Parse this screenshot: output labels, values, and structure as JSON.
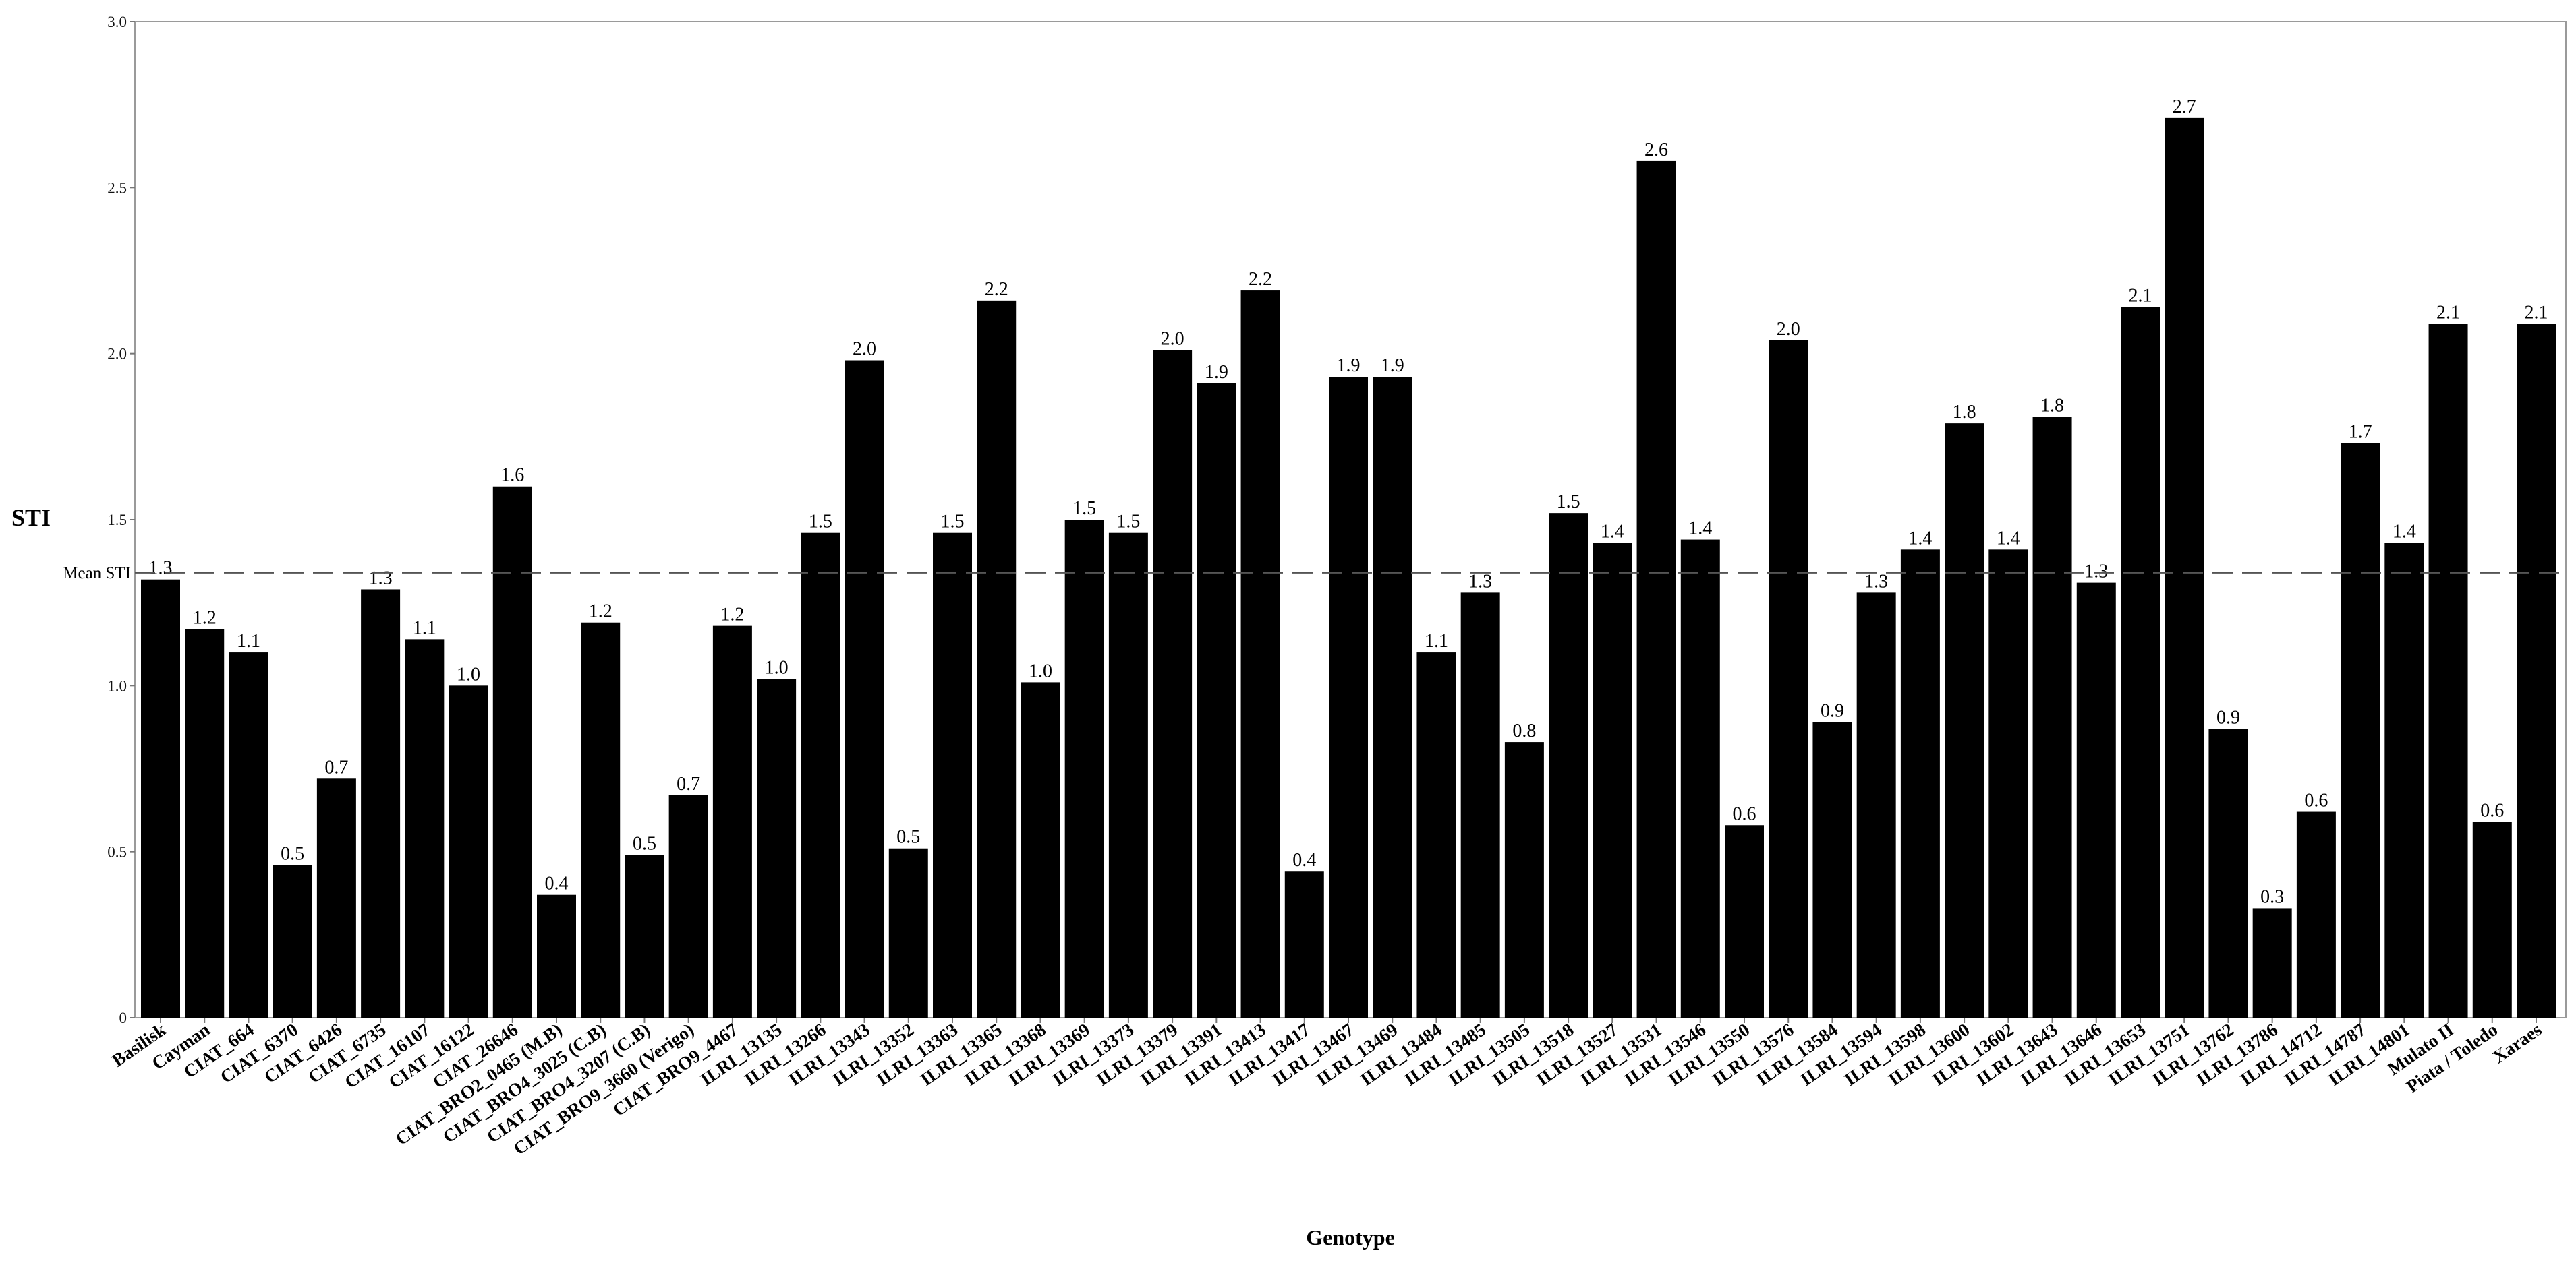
{
  "chart_data": {
    "type": "bar",
    "xlabel": "Genotype",
    "ylabel": "STI",
    "ylim": [
      0,
      3.0
    ],
    "yticks": [
      0,
      0.5,
      1.0,
      1.5,
      2.0,
      2.5,
      3.0
    ],
    "ytick_labels": [
      "0",
      "0.5",
      "1.0",
      "1.5",
      "2.0",
      "2.5",
      "3.0"
    ],
    "grid": false,
    "bar_color": "#000000",
    "reference_line": {
      "label": "Mean STI",
      "value": 1.34,
      "style": "dashed"
    },
    "categories": [
      "Basilisk",
      "Cayman",
      "CIAT_664",
      "CIAT_6370",
      "CIAT_6426",
      "CIAT_6735",
      "CIAT_16107",
      "CIAT_16122",
      "CIAT_26646",
      "CIAT_BRO2_0465 (M.B)",
      "CIAT_BRO4_3025 (C.B)",
      "CIAT_BRO4_3207 (C.B)",
      "CIAT_BRO9_3660 (Verigo)",
      "CIAT_BRO9_4467",
      "ILRI_13135",
      "ILRI_13266",
      "ILRI_13343",
      "ILRI_13352",
      "ILRI_13363",
      "ILRI_13365",
      "ILRI_13368",
      "ILRI_13369",
      "ILRI_13373",
      "ILRI_13379",
      "ILRI_13391",
      "ILRI_13413",
      "ILRI_13417",
      "ILRI_13467",
      "ILRI_13469",
      "ILRI_13484",
      "ILRI_13485",
      "ILRI_13505",
      "ILRI_13518",
      "ILRI_13527",
      "ILRI_13531",
      "ILRI_13546",
      "ILRI_13550",
      "ILRI_13576",
      "ILRI_13584",
      "ILRI_13594",
      "ILRI_13598",
      "ILRI_13600",
      "ILRI_13602",
      "ILRI_13643",
      "ILRI_13646",
      "ILRI_13653",
      "ILRI_13751",
      "ILRI_13762",
      "ILRI_13786",
      "ILRI_14712",
      "ILRI_14787",
      "ILRI_14801",
      "Mulato II",
      "Piata / Toledo",
      "Xaraes"
    ],
    "values": [
      1.32,
      1.17,
      1.1,
      0.46,
      0.72,
      1.29,
      1.14,
      1.0,
      1.6,
      0.37,
      1.19,
      0.49,
      0.67,
      1.18,
      1.02,
      1.46,
      1.98,
      0.51,
      1.46,
      2.16,
      1.01,
      1.5,
      1.46,
      2.01,
      1.91,
      2.19,
      0.44,
      1.93,
      1.93,
      1.1,
      1.28,
      0.83,
      1.52,
      1.43,
      2.58,
      1.44,
      0.58,
      2.04,
      0.89,
      1.28,
      1.41,
      1.79,
      1.41,
      1.81,
      1.31,
      2.14,
      2.71,
      0.87,
      0.33,
      0.62,
      1.73,
      1.43,
      2.09,
      0.59,
      2.09
    ],
    "value_labels": [
      "1.3",
      "1.2",
      "1.1",
      "0.5",
      "0.7",
      "1.3",
      "1.1",
      "1.0",
      "1.6",
      "0.4",
      "1.2",
      "0.5",
      "0.7",
      "1.2",
      "1.0",
      "1.5",
      "2.0",
      "0.5",
      "1.5",
      "2.2",
      "1.0",
      "1.5",
      "1.5",
      "2.0",
      "1.9",
      "2.2",
      "0.4",
      "1.9",
      "1.9",
      "1.1",
      "1.3",
      "0.8",
      "1.5",
      "1.4",
      "2.6",
      "1.4",
      "0.6",
      "2.0",
      "0.9",
      "1.3",
      "1.4",
      "1.8",
      "1.4",
      "1.8",
      "1.3",
      "2.1",
      "2.7",
      "0.9",
      "0.3",
      "0.6",
      "1.7",
      "1.4",
      "2.1",
      "0.6",
      "2.1"
    ]
  }
}
